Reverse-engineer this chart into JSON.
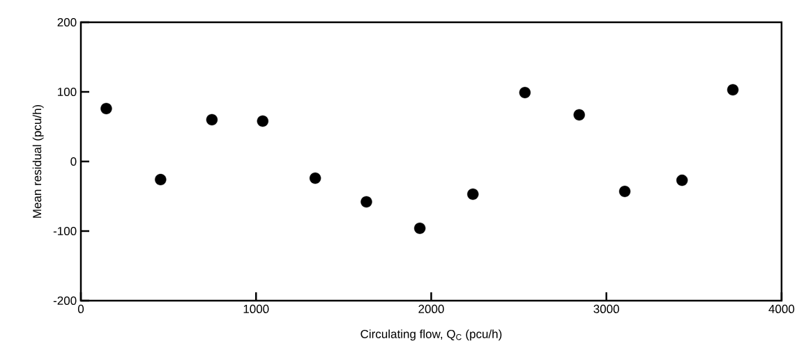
{
  "chart_data": {
    "type": "scatter",
    "xlabel": "Circulating flow, Q$_{C}$ (pcu/h)",
    "ylabel": "Mean residual (pcu/h)",
    "x": [
      145,
      455,
      748,
      1038,
      1338,
      1630,
      1935,
      2238,
      2535,
      2845,
      3105,
      3432,
      3722
    ],
    "series": [
      {
        "color": "#000000",
        "values": [
          76,
          -26,
          60,
          58,
          -24,
          -58,
          -96,
          -47,
          99,
          67,
          -43,
          -27,
          103
        ]
      }
    ],
    "marker": "circle",
    "xlim": [
      0,
      4000
    ],
    "xticks": [
      0,
      1000,
      2000,
      3000,
      4000
    ],
    "ylim": [
      -200,
      200
    ],
    "yticks": [
      -200,
      -100,
      0,
      100,
      200
    ]
  }
}
